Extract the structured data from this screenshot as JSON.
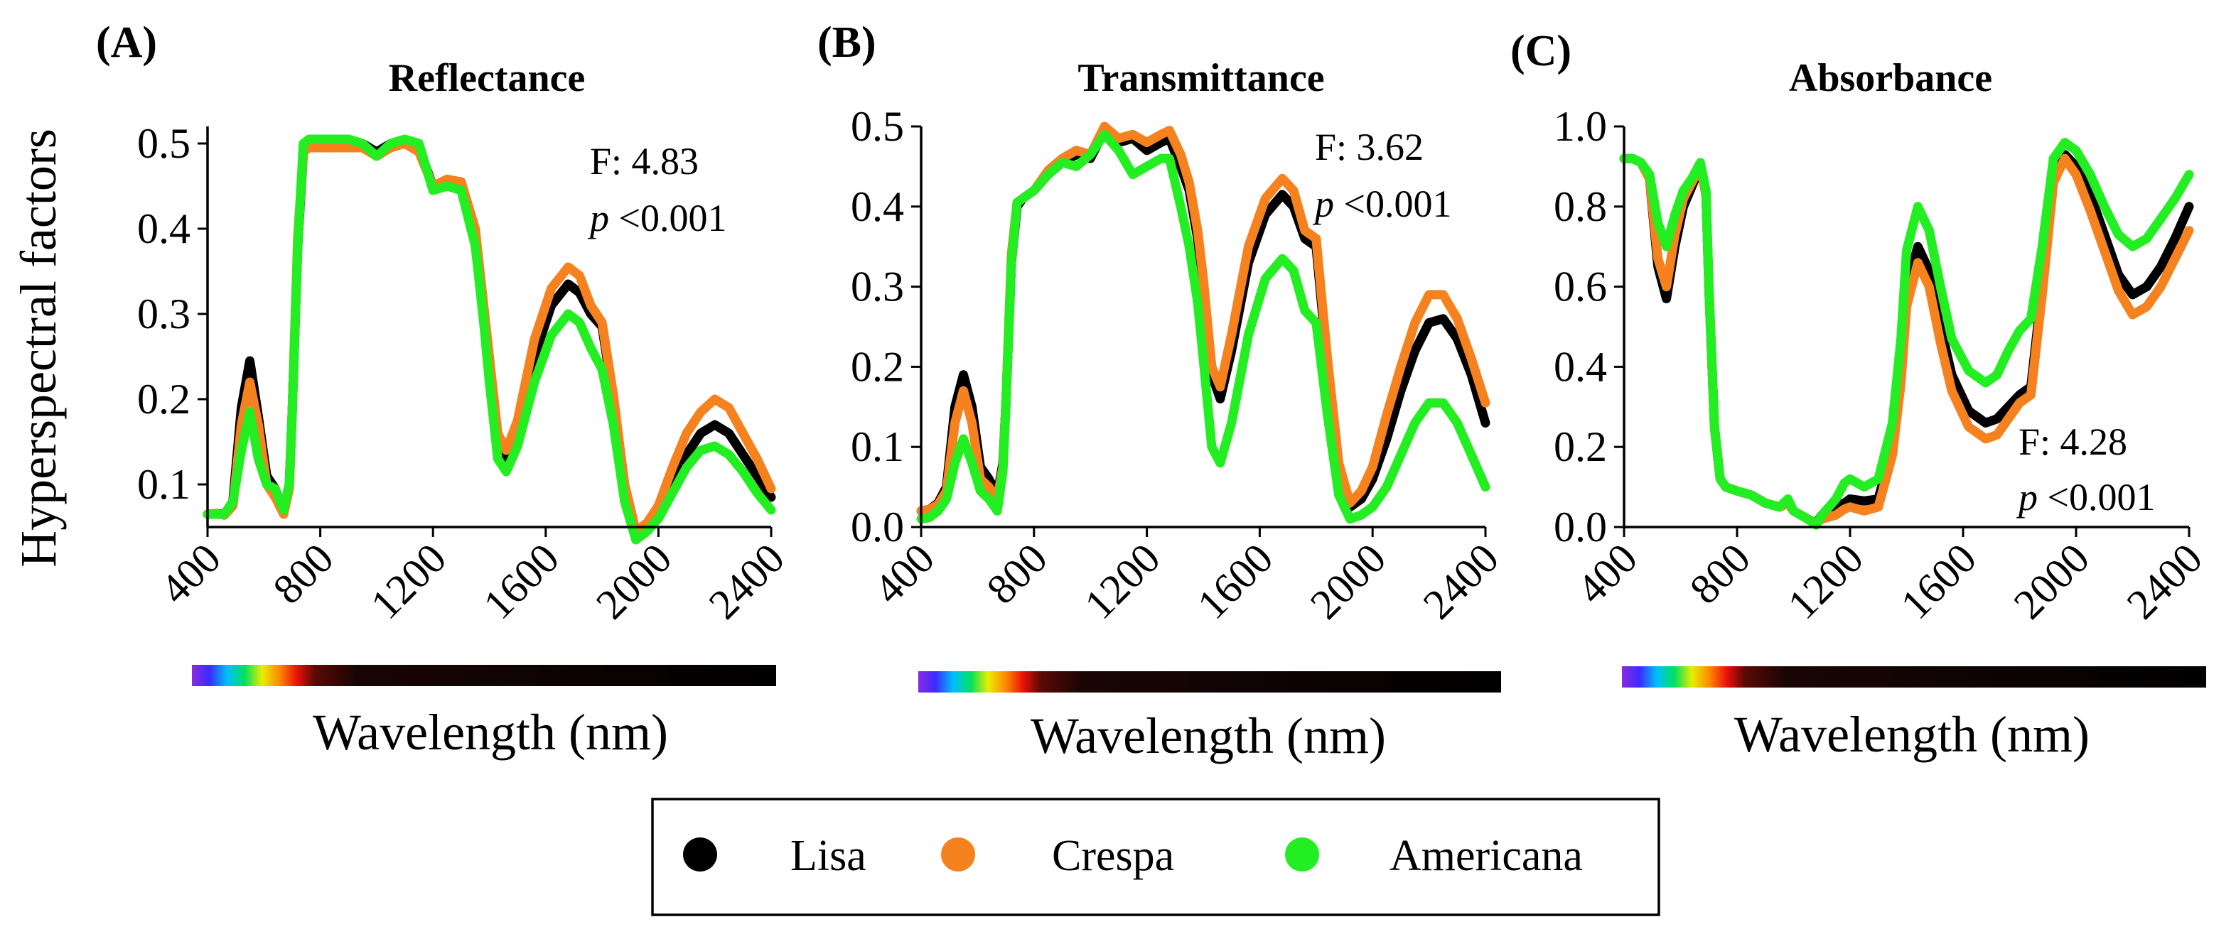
{
  "figure": {
    "y_axis_title": "Hyperspectral factors",
    "x_axis_title": "Wavelength (nm)",
    "legend": [
      {
        "label": "Lisa",
        "color": "#000000"
      },
      {
        "label": "Crespa",
        "color": "#f5821f"
      },
      {
        "label": "Americana",
        "color": "#22ee22"
      }
    ]
  },
  "chart_data": [
    {
      "type": "line",
      "panel": "(A)",
      "title": "Reflectance",
      "xlabel": "Wavelength (nm)",
      "ylabel": "Hyperspectral factors",
      "xlim": [
        400,
        2400
      ],
      "ylim": [
        0.05,
        0.52
      ],
      "xticks": [
        400,
        800,
        1200,
        1600,
        2000,
        2400
      ],
      "yticks": [
        0.1,
        0.2,
        0.3,
        0.4,
        0.5
      ],
      "ytick_labels": [
        "0.1",
        "0.2",
        "0.3",
        "0.4",
        "0.5"
      ],
      "stat_f": "F: 4.83",
      "stat_p_italic": "p",
      "stat_p_rest": " <0.001",
      "x": [
        400,
        430,
        460,
        490,
        520,
        550,
        580,
        610,
        640,
        670,
        690,
        700,
        720,
        740,
        760,
        800,
        900,
        950,
        1000,
        1050,
        1100,
        1150,
        1200,
        1250,
        1300,
        1350,
        1380,
        1400,
        1430,
        1460,
        1500,
        1560,
        1620,
        1680,
        1720,
        1760,
        1800,
        1840,
        1880,
        1920,
        1960,
        2000,
        2050,
        2100,
        2150,
        2200,
        2250,
        2300,
        2350,
        2400
      ],
      "series": [
        {
          "name": "Lisa",
          "color": "#000000",
          "values": [
            0.065,
            0.066,
            0.065,
            0.08,
            0.19,
            0.245,
            0.18,
            0.11,
            0.095,
            0.07,
            0.1,
            0.18,
            0.38,
            0.49,
            0.5,
            0.5,
            0.5,
            0.5,
            0.49,
            0.5,
            0.5,
            0.495,
            0.45,
            0.455,
            0.45,
            0.39,
            0.3,
            0.24,
            0.15,
            0.13,
            0.16,
            0.25,
            0.31,
            0.335,
            0.325,
            0.3,
            0.285,
            0.2,
            0.1,
            0.045,
            0.05,
            0.065,
            0.1,
            0.135,
            0.16,
            0.17,
            0.16,
            0.135,
            0.11,
            0.085
          ]
        },
        {
          "name": "Crespa",
          "color": "#f5821f",
          "values": [
            0.065,
            0.066,
            0.064,
            0.075,
            0.17,
            0.22,
            0.17,
            0.1,
            0.085,
            0.065,
            0.095,
            0.18,
            0.39,
            0.49,
            0.495,
            0.495,
            0.495,
            0.495,
            0.485,
            0.495,
            0.5,
            0.49,
            0.45,
            0.458,
            0.455,
            0.4,
            0.31,
            0.25,
            0.16,
            0.14,
            0.175,
            0.27,
            0.33,
            0.355,
            0.345,
            0.31,
            0.29,
            0.205,
            0.1,
            0.045,
            0.055,
            0.075,
            0.12,
            0.16,
            0.185,
            0.2,
            0.19,
            0.16,
            0.13,
            0.095
          ]
        },
        {
          "name": "Americana",
          "color": "#22ee22",
          "values": [
            0.065,
            0.065,
            0.065,
            0.08,
            0.14,
            0.185,
            0.13,
            0.1,
            0.095,
            0.07,
            0.1,
            0.18,
            0.38,
            0.5,
            0.505,
            0.505,
            0.505,
            0.5,
            0.485,
            0.5,
            0.505,
            0.5,
            0.445,
            0.45,
            0.445,
            0.38,
            0.29,
            0.22,
            0.13,
            0.115,
            0.145,
            0.22,
            0.275,
            0.3,
            0.29,
            0.26,
            0.235,
            0.17,
            0.08,
            0.035,
            0.045,
            0.06,
            0.09,
            0.12,
            0.14,
            0.145,
            0.135,
            0.115,
            0.09,
            0.07
          ]
        }
      ]
    },
    {
      "type": "line",
      "panel": "(B)",
      "title": "Transmittance",
      "xlabel": "Wavelength (nm)",
      "ylabel": "Hyperspectral factors",
      "xlim": [
        400,
        2400
      ],
      "ylim": [
        0.0,
        0.5
      ],
      "xticks": [
        400,
        800,
        1200,
        1600,
        2000,
        2400
      ],
      "yticks": [
        0.0,
        0.1,
        0.2,
        0.3,
        0.4,
        0.5
      ],
      "ytick_labels": [
        "0.0",
        "0.1",
        "0.2",
        "0.3",
        "0.4",
        "0.5"
      ],
      "stat_f": "F: 3.62",
      "stat_p_italic": "p",
      "stat_p_rest": " <0.001",
      "x": [
        400,
        430,
        460,
        490,
        520,
        550,
        580,
        610,
        640,
        670,
        690,
        700,
        720,
        740,
        760,
        800,
        850,
        900,
        950,
        1000,
        1050,
        1100,
        1150,
        1200,
        1250,
        1280,
        1320,
        1350,
        1380,
        1400,
        1430,
        1460,
        1500,
        1560,
        1620,
        1680,
        1720,
        1760,
        1800,
        1840,
        1880,
        1920,
        1960,
        2000,
        2050,
        2100,
        2150,
        2200,
        2250,
        2300,
        2350,
        2400
      ],
      "series": [
        {
          "name": "Lisa",
          "color": "#000000",
          "values": [
            0.02,
            0.022,
            0.03,
            0.05,
            0.15,
            0.19,
            0.15,
            0.075,
            0.06,
            0.04,
            0.08,
            0.15,
            0.33,
            0.4,
            0.41,
            0.42,
            0.44,
            0.455,
            0.465,
            0.46,
            0.495,
            0.48,
            0.485,
            0.47,
            0.48,
            0.485,
            0.45,
            0.42,
            0.36,
            0.3,
            0.19,
            0.16,
            0.22,
            0.33,
            0.39,
            0.415,
            0.4,
            0.36,
            0.35,
            0.2,
            0.07,
            0.025,
            0.035,
            0.06,
            0.11,
            0.17,
            0.22,
            0.255,
            0.26,
            0.235,
            0.19,
            0.13
          ]
        },
        {
          "name": "Crespa",
          "color": "#f5821f",
          "values": [
            0.02,
            0.022,
            0.028,
            0.045,
            0.13,
            0.17,
            0.13,
            0.06,
            0.05,
            0.035,
            0.075,
            0.15,
            0.34,
            0.405,
            0.41,
            0.42,
            0.445,
            0.46,
            0.47,
            0.465,
            0.5,
            0.485,
            0.49,
            0.48,
            0.49,
            0.495,
            0.465,
            0.43,
            0.37,
            0.31,
            0.2,
            0.175,
            0.24,
            0.35,
            0.41,
            0.435,
            0.42,
            0.37,
            0.36,
            0.21,
            0.08,
            0.03,
            0.045,
            0.075,
            0.14,
            0.2,
            0.255,
            0.29,
            0.29,
            0.26,
            0.21,
            0.155
          ]
        },
        {
          "name": "Americana",
          "color": "#22ee22",
          "values": [
            0.01,
            0.012,
            0.02,
            0.035,
            0.08,
            0.11,
            0.08,
            0.045,
            0.035,
            0.02,
            0.07,
            0.15,
            0.33,
            0.405,
            0.41,
            0.42,
            0.44,
            0.455,
            0.45,
            0.465,
            0.49,
            0.47,
            0.44,
            0.45,
            0.46,
            0.46,
            0.4,
            0.35,
            0.28,
            0.21,
            0.1,
            0.08,
            0.13,
            0.24,
            0.31,
            0.335,
            0.32,
            0.27,
            0.255,
            0.14,
            0.04,
            0.01,
            0.015,
            0.025,
            0.05,
            0.09,
            0.13,
            0.155,
            0.155,
            0.13,
            0.09,
            0.05
          ]
        }
      ]
    },
    {
      "type": "line",
      "panel": "(C)",
      "title": "Absorbance",
      "xlabel": "Wavelength (nm)",
      "ylabel": "Hyperspectral factors",
      "xlim": [
        400,
        2400
      ],
      "ylim": [
        0.0,
        1.0
      ],
      "xticks": [
        400,
        800,
        1200,
        1600,
        2000,
        2400
      ],
      "yticks": [
        0.0,
        0.2,
        0.4,
        0.6,
        0.8,
        1.0
      ],
      "ytick_labels": [
        "0.0",
        "0.2",
        "0.4",
        "0.6",
        "0.8",
        "1.0"
      ],
      "stat_f": "F: 4.28",
      "stat_p_italic": "p",
      "stat_p_rest": " <0.001",
      "x": [
        400,
        430,
        460,
        490,
        520,
        550,
        580,
        610,
        640,
        670,
        690,
        700,
        720,
        740,
        760,
        800,
        850,
        900,
        950,
        980,
        1000,
        1050,
        1080,
        1100,
        1150,
        1180,
        1200,
        1250,
        1300,
        1350,
        1380,
        1400,
        1440,
        1480,
        1520,
        1560,
        1620,
        1680,
        1720,
        1760,
        1800,
        1840,
        1880,
        1920,
        1960,
        2000,
        2050,
        2100,
        2150,
        2200,
        2250,
        2300,
        2350,
        2400
      ],
      "series": [
        {
          "name": "Lisa",
          "color": "#000000",
          "values": [
            0.92,
            0.92,
            0.91,
            0.87,
            0.65,
            0.57,
            0.7,
            0.8,
            0.85,
            0.9,
            0.83,
            0.6,
            0.25,
            0.12,
            0.1,
            0.09,
            0.08,
            0.06,
            0.05,
            0.06,
            0.04,
            0.02,
            0.01,
            0.03,
            0.05,
            0.06,
            0.07,
            0.065,
            0.07,
            0.2,
            0.4,
            0.6,
            0.7,
            0.64,
            0.5,
            0.38,
            0.29,
            0.26,
            0.27,
            0.3,
            0.33,
            0.35,
            0.6,
            0.88,
            0.93,
            0.9,
            0.83,
            0.73,
            0.63,
            0.58,
            0.6,
            0.65,
            0.72,
            0.8
          ]
        },
        {
          "name": "Crespa",
          "color": "#f5821f",
          "values": [
            0.92,
            0.92,
            0.91,
            0.87,
            0.67,
            0.6,
            0.73,
            0.82,
            0.86,
            0.9,
            0.83,
            0.6,
            0.25,
            0.12,
            0.1,
            0.09,
            0.08,
            0.06,
            0.05,
            0.06,
            0.04,
            0.02,
            0.01,
            0.02,
            0.03,
            0.045,
            0.05,
            0.04,
            0.05,
            0.18,
            0.36,
            0.55,
            0.66,
            0.6,
            0.46,
            0.34,
            0.25,
            0.22,
            0.23,
            0.27,
            0.31,
            0.33,
            0.58,
            0.86,
            0.92,
            0.88,
            0.79,
            0.69,
            0.59,
            0.53,
            0.55,
            0.6,
            0.67,
            0.74
          ]
        },
        {
          "name": "Americana",
          "color": "#22ee22",
          "values": [
            0.92,
            0.92,
            0.91,
            0.88,
            0.76,
            0.7,
            0.78,
            0.84,
            0.87,
            0.91,
            0.84,
            0.6,
            0.25,
            0.12,
            0.1,
            0.09,
            0.08,
            0.06,
            0.05,
            0.07,
            0.04,
            0.02,
            0.005,
            0.03,
            0.07,
            0.11,
            0.12,
            0.1,
            0.12,
            0.26,
            0.47,
            0.69,
            0.8,
            0.74,
            0.6,
            0.47,
            0.39,
            0.36,
            0.38,
            0.44,
            0.49,
            0.52,
            0.7,
            0.92,
            0.96,
            0.94,
            0.88,
            0.8,
            0.73,
            0.7,
            0.72,
            0.77,
            0.82,
            0.88
          ]
        }
      ]
    }
  ]
}
